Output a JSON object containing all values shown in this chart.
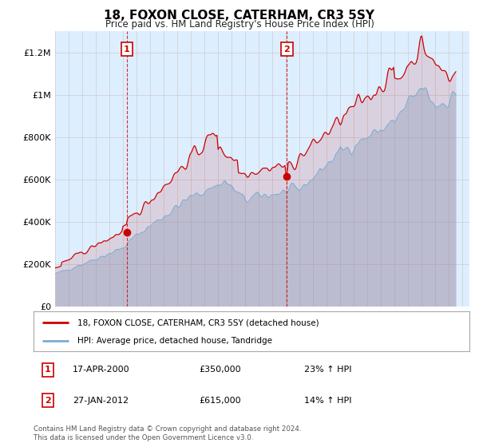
{
  "title": "18, FOXON CLOSE, CATERHAM, CR3 5SY",
  "subtitle": "Price paid vs. HM Land Registry's House Price Index (HPI)",
  "legend_line1": "18, FOXON CLOSE, CATERHAM, CR3 5SY (detached house)",
  "legend_line2": "HPI: Average price, detached house, Tandridge",
  "annotation1_label": "1",
  "annotation1_date": "17-APR-2000",
  "annotation1_price": "£350,000",
  "annotation1_hpi": "23% ↑ HPI",
  "annotation1_year": 2000.29,
  "annotation1_value": 350000,
  "annotation2_label": "2",
  "annotation2_date": "27-JAN-2012",
  "annotation2_price": "£615,000",
  "annotation2_hpi": "14% ↑ HPI",
  "annotation2_year": 2012.07,
  "annotation2_value": 615000,
  "footer": "Contains HM Land Registry data © Crown copyright and database right 2024.\nThis data is licensed under the Open Government Licence v3.0.",
  "hpi_color": "#7aadcf",
  "price_color": "#cc0000",
  "background_color": "#ddeeff",
  "plot_bg": "#ffffff",
  "ylim": [
    0,
    1300000
  ],
  "yticks": [
    0,
    200000,
    400000,
    600000,
    800000,
    1000000,
    1200000
  ],
  "ylabel_fmt": [
    "£0",
    "£200K",
    "£400K",
    "£600K",
    "£800K",
    "£1M",
    "£1.2M"
  ],
  "xmin": 1995.0,
  "xmax": 2025.5
}
